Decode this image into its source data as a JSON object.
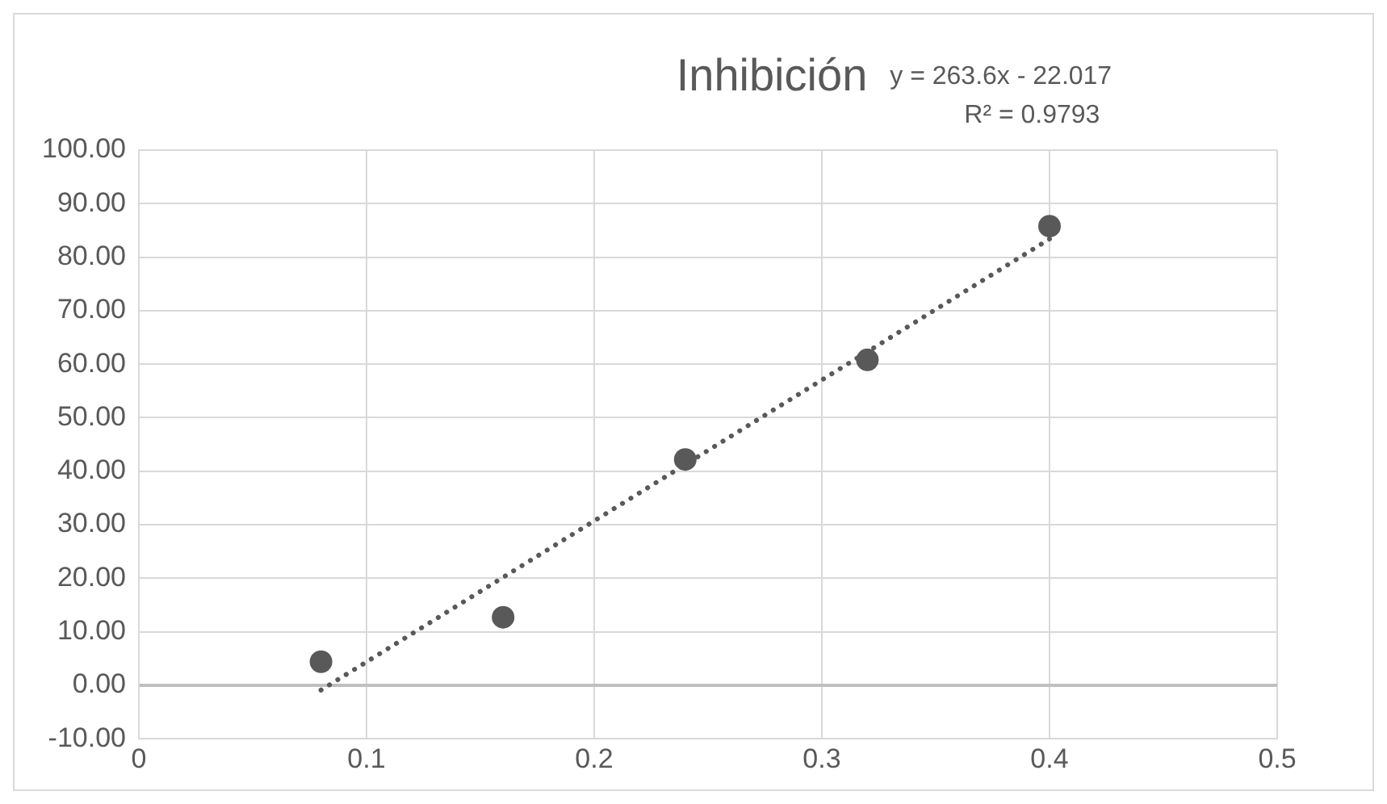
{
  "chart_data": {
    "type": "scatter",
    "title": "Inhibición",
    "annotations": [
      "y = 263.6x - 22.017",
      "R² = 0.9793"
    ],
    "series": [
      {
        "color": "#595959",
        "marker": "circle",
        "x": [
          0.08,
          0.16,
          0.24,
          0.32,
          0.4
        ],
        "values": [
          4.4,
          12.7,
          42.2,
          60.8,
          85.8
        ]
      },
      {
        "type": "line",
        "color": "#595959",
        "marker": "none",
        "line_style": "dotted",
        "x": [
          0.08,
          0.4
        ],
        "values": [
          -0.9,
          83.4
        ]
      }
    ],
    "xlim": [
      0,
      0.5
    ],
    "xticks": [
      0,
      0.1,
      0.2,
      0.3,
      0.4,
      0.5
    ],
    "ylim": [
      -10,
      100
    ],
    "yticks": [
      {
        "value": -10,
        "label": "-10.00"
      },
      {
        "value": 0,
        "label": "0.00"
      },
      {
        "value": 10,
        "label": "10.00"
      },
      {
        "value": 20,
        "label": "20.00"
      },
      {
        "value": 30,
        "label": "30.00"
      },
      {
        "value": 40,
        "label": "40.00"
      },
      {
        "value": 50,
        "label": "50.00"
      },
      {
        "value": 60,
        "label": "60.00"
      },
      {
        "value": 70,
        "label": "70.00"
      },
      {
        "value": 80,
        "label": "80.00"
      },
      {
        "value": 90,
        "label": "90.00"
      },
      {
        "value": 100,
        "label": "100.00"
      }
    ],
    "grid": true,
    "legend": false
  }
}
